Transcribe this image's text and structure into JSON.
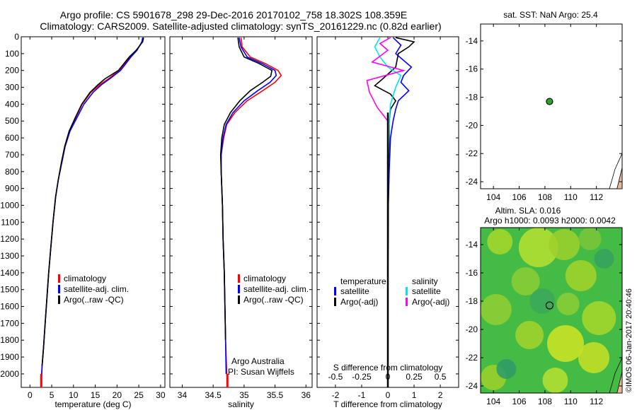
{
  "header": {
    "line1": "Argo profile: CS 5901678_298 29-Dec-2016 20170102_758 18.302S 108.359E",
    "line2": "Climatology: CARS2009. Satellite-adjusted climatology: synTS_20161229.nc (0.82d earlier)"
  },
  "footer": {
    "credit": "©IMOS 06-Jan-2017 20:40:46",
    "argo_label": "Argo Australia",
    "pi_label": "PI: Susan Wijffels"
  },
  "colors": {
    "climatology": "#ff0000",
    "satellite": "#0000ff",
    "argo": "#000000",
    "salinity_satellite": "#00e5ee",
    "salinity_argo": "#ff00ff",
    "marker": "#22aa22",
    "land": "#e8b898"
  },
  "chart_data": [
    {
      "type": "line",
      "id": "temperature-profile",
      "xlabel": "temperature (deg C)",
      "xlim": [
        -2,
        31
      ],
      "xticks": [
        0,
        5,
        10,
        15,
        20,
        25,
        30
      ],
      "ylim": [
        2080,
        0
      ],
      "yticks": [
        0,
        100,
        200,
        300,
        400,
        500,
        600,
        700,
        800,
        900,
        1000,
        1100,
        1200,
        1300,
        1400,
        1500,
        1600,
        1700,
        1800,
        1900,
        2000
      ],
      "legend": [
        "climatology",
        "satellite-adj. clim.",
        "Argo(..raw -QC)"
      ],
      "series": [
        {
          "name": "climatology",
          "color": "#ff0000",
          "points": [
            [
              26.0,
              5
            ],
            [
              25.8,
              30
            ],
            [
              24.5,
              80
            ],
            [
              23,
              120
            ],
            [
              20.5,
              200
            ],
            [
              18,
              250
            ],
            [
              16,
              285
            ],
            [
              14,
              330
            ],
            [
              12,
              400
            ],
            [
              10.5,
              480
            ],
            [
              9,
              560
            ],
            [
              8,
              650
            ],
            [
              7.2,
              750
            ],
            [
              6.5,
              850
            ],
            [
              5.9,
              950
            ],
            [
              5.3,
              1100
            ],
            [
              4.8,
              1250
            ],
            [
              4.3,
              1400
            ],
            [
              3.9,
              1550
            ],
            [
              3.5,
              1700
            ],
            [
              3.1,
              1850
            ],
            [
              2.8,
              1950
            ],
            [
              2.6,
              2050
            ]
          ]
        },
        {
          "name": "satellite-adj. clim.",
          "color": "#0000ff",
          "points": [
            [
              25.9,
              5
            ],
            [
              25.7,
              30
            ],
            [
              24.6,
              80
            ],
            [
              23.2,
              120
            ],
            [
              20.8,
              200
            ],
            [
              18.3,
              250
            ],
            [
              16.4,
              285
            ],
            [
              14.5,
              330
            ],
            [
              12.4,
              400
            ],
            [
              10.8,
              480
            ],
            [
              9.2,
              560
            ],
            [
              8.1,
              650
            ],
            [
              7.3,
              750
            ],
            [
              6.5,
              850
            ],
            [
              5.9,
              950
            ],
            [
              5.3,
              1100
            ],
            [
              4.8,
              1250
            ],
            [
              4.3,
              1400
            ],
            [
              3.9,
              1550
            ],
            [
              3.5,
              1700
            ],
            [
              3.1,
              1850
            ],
            [
              2.8,
              1950
            ],
            [
              2.6,
              2050
            ]
          ]
        },
        {
          "name": "Argo(..raw -QC)",
          "color": "#000000",
          "points": [
            [
              26.1,
              5
            ],
            [
              25.9,
              30
            ],
            [
              24.4,
              80
            ],
            [
              22.8,
              120
            ],
            [
              20.3,
              200
            ],
            [
              17.2,
              250
            ],
            [
              15.6,
              285
            ],
            [
              13.8,
              330
            ],
            [
              11.9,
              400
            ],
            [
              10.4,
              480
            ],
            [
              9,
              560
            ],
            [
              8,
              650
            ],
            [
              7.2,
              750
            ],
            [
              6.5,
              850
            ],
            [
              5.9,
              950
            ],
            [
              5.3,
              1100
            ],
            [
              4.8,
              1250
            ],
            [
              4.3,
              1400
            ],
            [
              3.9,
              1550
            ],
            [
              3.5,
              1700
            ],
            [
              3.1,
              1850
            ],
            [
              2.8,
              1950
            ]
          ]
        }
      ]
    },
    {
      "type": "line",
      "id": "salinity-profile",
      "xlabel": "salinity",
      "xlim": [
        33.8,
        36.1
      ],
      "xticks": [
        34,
        34.5,
        35,
        35.5,
        36
      ],
      "ylim": [
        2080,
        0
      ],
      "legend": [
        "climatology",
        "satellite-adj. clim.",
        "Argo(..raw -QC)"
      ],
      "series": [
        {
          "name": "climatology",
          "color": "#ff0000",
          "points": [
            [
              34.95,
              5
            ],
            [
              34.97,
              60
            ],
            [
              35.1,
              120
            ],
            [
              35.35,
              160
            ],
            [
              35.55,
              200
            ],
            [
              35.6,
              230
            ],
            [
              35.5,
              270
            ],
            [
              35.3,
              320
            ],
            [
              35.05,
              380
            ],
            [
              34.85,
              450
            ],
            [
              34.72,
              520
            ],
            [
              34.67,
              600
            ],
            [
              34.63,
              700
            ],
            [
              34.63,
              800
            ],
            [
              34.64,
              900
            ],
            [
              34.65,
              1000
            ],
            [
              34.66,
              1200
            ],
            [
              34.68,
              1400
            ],
            [
              34.69,
              1600
            ],
            [
              34.7,
              1800
            ],
            [
              34.72,
              2000
            ],
            [
              34.73,
              2050
            ]
          ]
        },
        {
          "name": "satellite-adj. clim.",
          "color": "#0000ff",
          "points": [
            [
              34.92,
              5
            ],
            [
              34.95,
              60
            ],
            [
              35.05,
              120
            ],
            [
              35.3,
              160
            ],
            [
              35.5,
              200
            ],
            [
              35.52,
              230
            ],
            [
              35.42,
              270
            ],
            [
              35.22,
              320
            ],
            [
              35.0,
              380
            ],
            [
              34.82,
              450
            ],
            [
              34.71,
              520
            ],
            [
              34.66,
              600
            ],
            [
              34.63,
              700
            ],
            [
              34.63,
              800
            ],
            [
              34.64,
              900
            ],
            [
              34.65,
              1000
            ],
            [
              34.66,
              1200
            ],
            [
              34.68,
              1400
            ],
            [
              34.69,
              1600
            ],
            [
              34.7,
              1800
            ],
            [
              34.71,
              2000
            ]
          ]
        },
        {
          "name": "Argo(..raw -QC)",
          "color": "#000000",
          "points": [
            [
              34.9,
              5
            ],
            [
              34.92,
              60
            ],
            [
              35.0,
              120
            ],
            [
              35.25,
              160
            ],
            [
              35.45,
              200
            ],
            [
              35.43,
              235
            ],
            [
              35.3,
              270
            ],
            [
              35.1,
              320
            ],
            [
              34.93,
              380
            ],
            [
              34.78,
              450
            ],
            [
              34.68,
              520
            ],
            [
              34.64,
              600
            ],
            [
              34.62,
              700
            ],
            [
              34.63,
              800
            ],
            [
              34.64,
              900
            ],
            [
              34.65,
              1000
            ],
            [
              34.66,
              1200
            ],
            [
              34.68,
              1400
            ],
            [
              34.69,
              1600
            ],
            [
              34.7,
              1800
            ]
          ]
        }
      ]
    },
    {
      "type": "line",
      "id": "difference-profile",
      "xlabel": "T difference from climatology",
      "xlabel_top": "S difference from climatology",
      "xlim": [
        -2.7,
        2.7
      ],
      "xticks": [
        -2,
        -1,
        0,
        1,
        2
      ],
      "xticks_top_labels": [
        "-0.5",
        "-0.25",
        "0",
        "0.25",
        "0.5"
      ],
      "ylim": [
        2080,
        0
      ],
      "legend_temperature_heading": "temperature",
      "legend_salinity_heading": "salinity",
      "legend_temperature": [
        "satellite",
        "Argo(-adj)"
      ],
      "legend_salinity": [
        "satellite",
        "Argo(-adj)"
      ],
      "series": [
        {
          "name": "temperature satellite",
          "color": "#0000ff",
          "points": [
            [
              0.2,
              5
            ],
            [
              0.5,
              50
            ],
            [
              0.3,
              100
            ],
            [
              0.9,
              180
            ],
            [
              0.6,
              230
            ],
            [
              0.5,
              270
            ],
            [
              0.8,
              320
            ],
            [
              0.4,
              380
            ],
            [
              0.3,
              430
            ],
            [
              0.2,
              500
            ],
            [
              0.1,
              600
            ],
            [
              0.05,
              800
            ],
            [
              0.02,
              1000
            ],
            [
              0,
              1500
            ],
            [
              0,
              2000
            ]
          ]
        },
        {
          "name": "temperature Argo(-adj)",
          "color": "#000000",
          "points": [
            [
              0.3,
              5
            ],
            [
              1.0,
              30
            ],
            [
              0.8,
              60
            ],
            [
              0.4,
              100
            ],
            [
              0.3,
              180
            ],
            [
              -0.2,
              250
            ],
            [
              -0.5,
              290
            ],
            [
              0.1,
              340
            ],
            [
              0.3,
              380
            ],
            [
              0.1,
              430
            ],
            [
              0.05,
              500
            ],
            [
              0.05,
              600
            ],
            [
              0.02,
              800
            ],
            [
              0.02,
              1000
            ],
            [
              0,
              1500
            ],
            [
              0,
              2000
            ]
          ]
        },
        {
          "name": "salinity satellite",
          "color": "#00e5ee",
          "points": [
            [
              -0.3,
              5
            ],
            [
              -0.5,
              60
            ],
            [
              -0.3,
              120
            ],
            [
              0,
              180
            ],
            [
              0.5,
              230
            ],
            [
              0.3,
              300
            ],
            [
              0.1,
              400
            ],
            [
              0.05,
              500
            ],
            [
              0.02,
              700
            ],
            [
              0,
              1000
            ],
            [
              0,
              1500
            ],
            [
              0,
              2000
            ]
          ]
        },
        {
          "name": "salinity Argo(-adj)",
          "color": "#ff00ff",
          "points": [
            [
              0.1,
              5
            ],
            [
              -0.3,
              40
            ],
            [
              0,
              80
            ],
            [
              -0.6,
              150
            ],
            [
              0.6,
              200
            ],
            [
              -0.8,
              260
            ],
            [
              -0.7,
              330
            ],
            [
              -0.4,
              420
            ],
            [
              0,
              500
            ],
            [
              0,
              600
            ],
            [
              0,
              800
            ],
            [
              0,
              1000
            ],
            [
              0,
              1500
            ],
            [
              0,
              2000
            ]
          ]
        }
      ]
    }
  ],
  "maps": {
    "sst": {
      "title": "sat. SST: NaN Argo: 25.4",
      "xlim": [
        103,
        114
      ],
      "ylim": [
        -24.5,
        -12.8
      ],
      "xticks": [
        104,
        106,
        108,
        110,
        112
      ],
      "yticks": [
        -14,
        -16,
        -18,
        -20,
        -22,
        -24
      ],
      "float_position": {
        "lon": 108.359,
        "lat": -18.302
      }
    },
    "sla": {
      "title_line1": "Altim. SLA: 0.016",
      "title_line2": "Argo h1000: 0.0093 h2000: 0.0042",
      "xlim": [
        103,
        114
      ],
      "ylim": [
        -24.5,
        -12.8
      ],
      "xticks": [
        104,
        106,
        108,
        110,
        112
      ],
      "yticks": [
        -14,
        -16,
        -18,
        -20,
        -22,
        -24
      ],
      "float_position": {
        "lon": 108.359,
        "lat": -18.302
      }
    }
  }
}
